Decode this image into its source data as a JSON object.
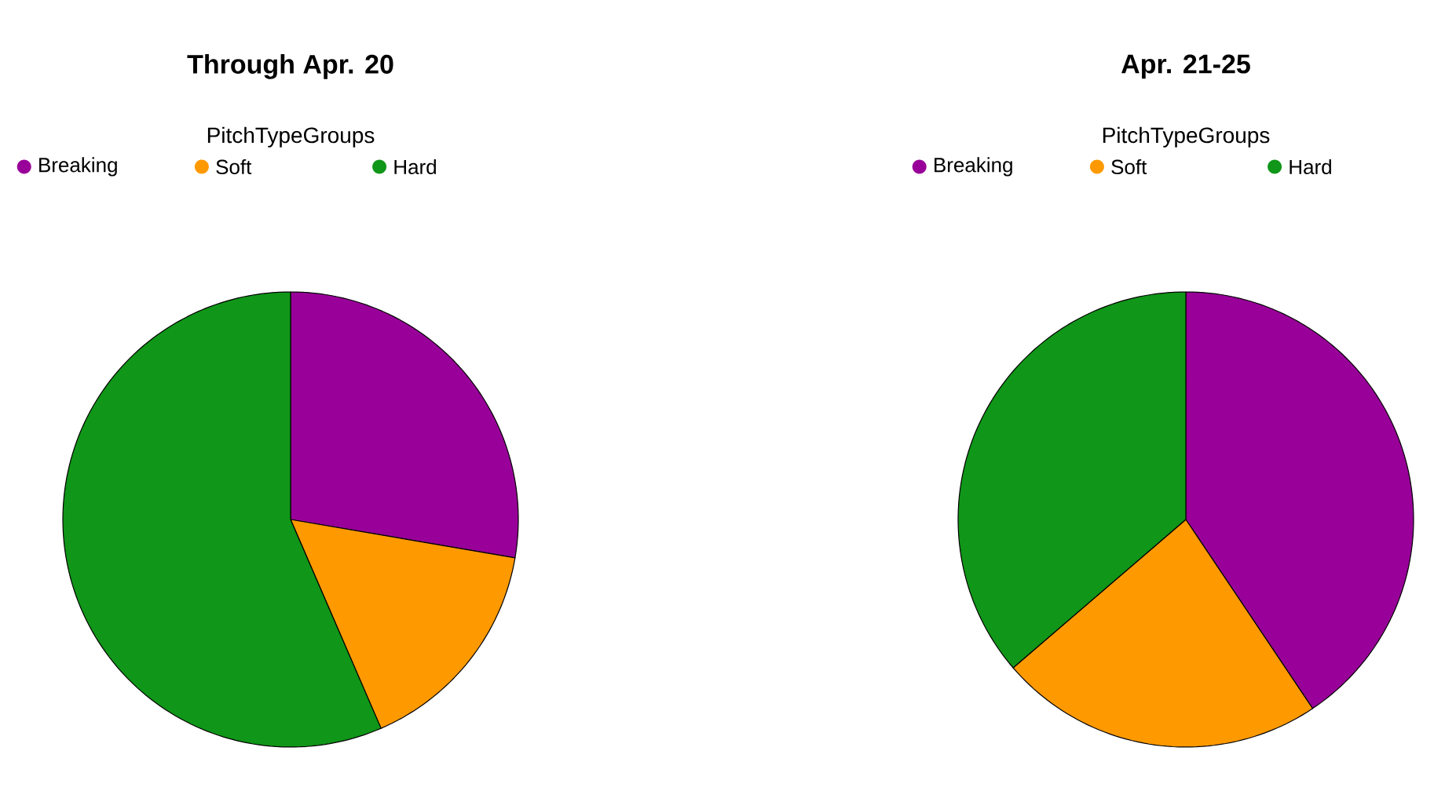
{
  "chart_data": [
    {
      "type": "pie",
      "title": "Through Apr. 20",
      "legend_title": "PitchTypeGroups",
      "legend": "top",
      "categories": [
        "Breaking",
        "Soft",
        "Hard"
      ],
      "values": [
        27.7,
        15.8,
        56.5
      ],
      "colors": [
        "#990099",
        "#ff9900",
        "#109618"
      ]
    },
    {
      "type": "pie",
      "title": "Apr. 21-25",
      "legend_title": "PitchTypeGroups",
      "legend": "top",
      "categories": [
        "Breaking",
        "Soft",
        "Hard"
      ],
      "values": [
        40.6,
        23.1,
        36.3
      ],
      "colors": [
        "#990099",
        "#ff9900",
        "#109618"
      ]
    }
  ]
}
